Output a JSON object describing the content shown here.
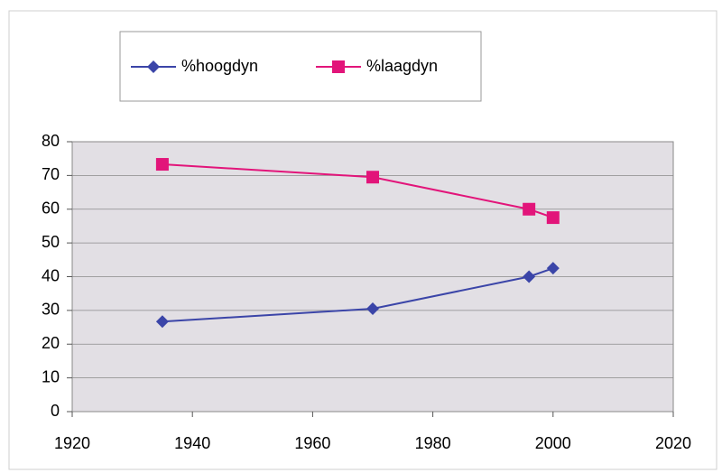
{
  "chart_data": {
    "type": "line",
    "x": [
      1935,
      1970,
      1996,
      2000
    ],
    "series": [
      {
        "name": "%hoogdyn",
        "color": "#3b45a8",
        "marker": "diamond",
        "values": [
          26.7,
          30.5,
          40,
          42.5
        ]
      },
      {
        "name": "%laagdyn",
        "color": "#e2157a",
        "marker": "square",
        "values": [
          73.3,
          69.5,
          60,
          57.5
        ]
      }
    ],
    "xlim": [
      1920,
      2020
    ],
    "xticks": [
      1920,
      1940,
      1960,
      1980,
      2000,
      2020
    ],
    "ylim": [
      0,
      80
    ],
    "yticks": [
      0,
      10,
      20,
      30,
      40,
      50,
      60,
      70,
      80
    ],
    "grid": true,
    "legend": "top"
  }
}
